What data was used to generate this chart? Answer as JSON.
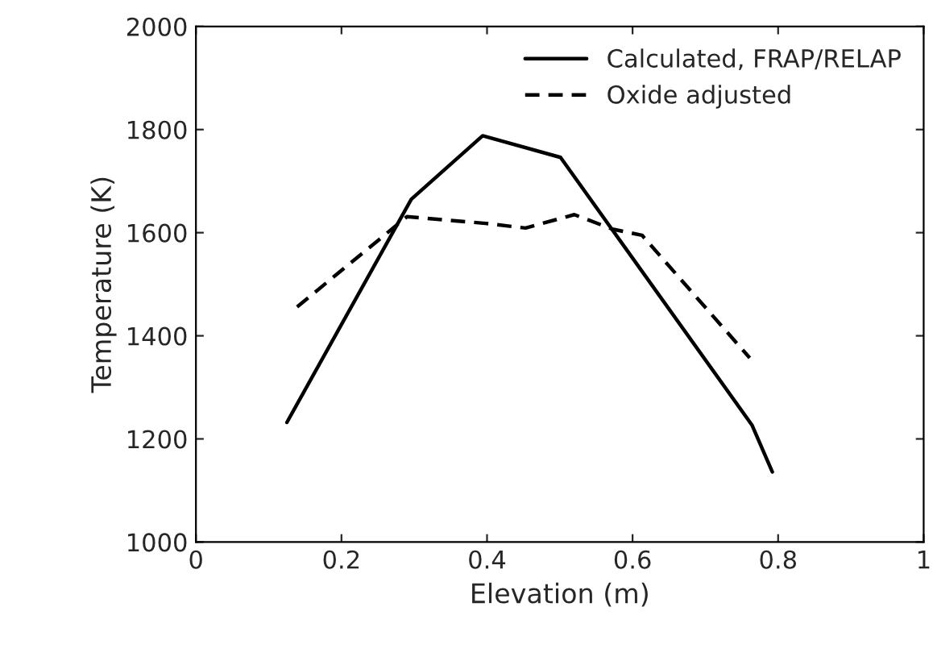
{
  "chart_data": {
    "type": "line",
    "xlabel": "Elevation (m)",
    "ylabel": "Temperature (K)",
    "series": [
      {
        "name": "Calculated, FRAP/RELAP",
        "color": "#000000",
        "line_style": "solid",
        "x": [
          0.125,
          0.296,
          0.394,
          0.501,
          0.764,
          0.792
        ],
        "values": [
          1232,
          1665,
          1788,
          1746,
          1227,
          1136
        ]
      },
      {
        "name": "Oxide adjusted",
        "color": "#000000",
        "line_style": "dashed",
        "x": [
          0.139,
          0.29,
          0.398,
          0.453,
          0.52,
          0.572,
          0.613,
          0.761
        ],
        "values": [
          1456,
          1631,
          1618,
          1609,
          1635,
          1607,
          1595,
          1357
        ]
      }
    ],
    "xlim": [
      0,
      1
    ],
    "xticks": [
      0,
      0.2,
      0.4,
      0.6,
      0.8,
      1
    ],
    "ylim": [
      1000,
      2000
    ],
    "yticks": [
      1000,
      1200,
      1400,
      1600,
      1800,
      2000
    ],
    "grid": false,
    "legend": "top right"
  }
}
